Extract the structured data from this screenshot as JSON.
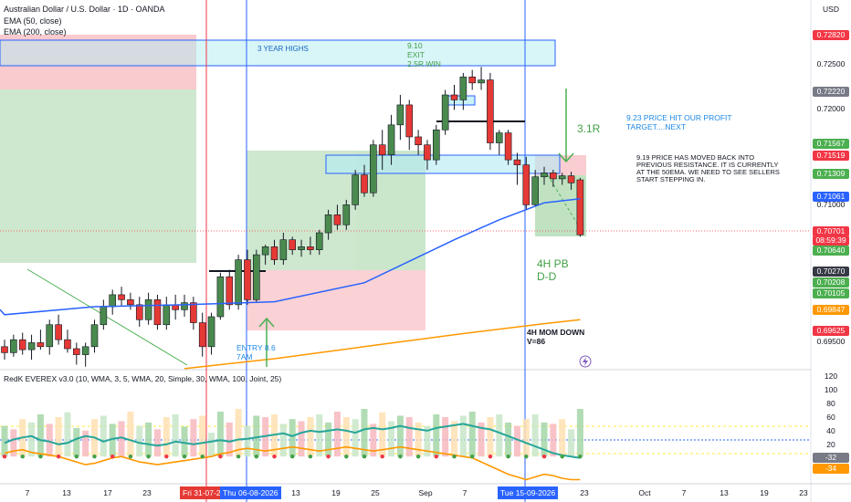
{
  "header": {
    "symbol_title": "Australian Dollar / U.S. Dollar · 1D · OANDA",
    "ema_50": "EMA (50, close)",
    "ema_200": "EMA (200, close)",
    "currency": "USD",
    "indicator": "RedK EVEREX v3.0 (10, WMA, 3, 5, WMA, 20, Simple, 30, WMA, 100, Joint, 25)"
  },
  "annotations": {
    "year_highs": "3 YEAR HIGHS",
    "exit_line1": "9.10",
    "exit_line2": "EXIT",
    "exit_line3": "2.5R WIN",
    "profit_line1": "9.23 PRICE HIT OUR PROFIT",
    "profit_line2": "TARGET....NEXT",
    "r31": "3.1R",
    "note_line1": "9.19 PRICE HAS MOVED BACK INTO",
    "note_line2": "PREVIOUS RESISTANCE. IT IS CURRENTLY",
    "note_line3": "AT THE 50EMA. WE NEED TO SEE SELLERS",
    "note_line4": "START STEPPING IN.",
    "pb_line1": "4H PB",
    "pb_line2": "D-D",
    "mom_line1": "4H MOM DOWN",
    "mom_line2": "V=86",
    "entry_line1": "ENTRY 8.6",
    "entry_line2": "7AM"
  },
  "price_axis": {
    "plain": [
      "0.72500",
      "0.72000",
      "0.71000",
      "0.69500"
    ],
    "tags": [
      {
        "label": "0.72820",
        "color": "#f23645"
      },
      {
        "label": "0.72220",
        "color": "#787b86"
      },
      {
        "label": "0.71567",
        "color": "#4caf50"
      },
      {
        "label": "0.71519",
        "color": "#f23645"
      },
      {
        "label": "0.71309",
        "color": "#4caf50"
      },
      {
        "label": "0.71061",
        "color": "#2962ff"
      },
      {
        "label": "0.70701",
        "color": "#f23645"
      },
      {
        "label": "08:59:39",
        "color": "#f23645"
      },
      {
        "label": "0.70640",
        "color": "#4caf50"
      },
      {
        "label": "0.70270",
        "color": "#363a45"
      },
      {
        "label": "0.70208",
        "color": "#4caf50"
      },
      {
        "label": "0.70105",
        "color": "#4caf50"
      },
      {
        "label": "0.69847",
        "color": "#ff9800"
      },
      {
        "label": "0.69625",
        "color": "#f23645"
      }
    ]
  },
  "osc_axis": {
    "plain": [
      "120",
      "100",
      "80",
      "60",
      "40",
      "20",
      "0"
    ],
    "tags": [
      {
        "label": "-32",
        "color": "#787b86"
      },
      {
        "label": "-34",
        "color": "#ff9800"
      }
    ]
  },
  "time_axis": {
    "ticks": [
      "7",
      "13",
      "17",
      "23",
      "13",
      "19",
      "25",
      "Sep",
      "7",
      "23",
      "Oct",
      "7",
      "13",
      "19",
      "23"
    ],
    "tag_fri": "Fri 31-07-2",
    "tag_thu": "Thu 06-08-2026",
    "tag_tue": "Tue 15-09-2026"
  },
  "chart_data": [
    {
      "type": "candlestick",
      "title": "Australian Dollar / U.S. Dollar · 1D · OANDA",
      "currency": "USD",
      "ylim": [
        0.6935,
        0.7305
      ],
      "candles": [
        {
          "o": 0.6958,
          "h": 0.6965,
          "l": 0.6945,
          "c": 0.6952
        },
        {
          "o": 0.6952,
          "h": 0.697,
          "l": 0.6948,
          "c": 0.6965
        },
        {
          "o": 0.6965,
          "h": 0.6972,
          "l": 0.695,
          "c": 0.6955
        },
        {
          "o": 0.6955,
          "h": 0.697,
          "l": 0.6945,
          "c": 0.6962
        },
        {
          "o": 0.6962,
          "h": 0.6975,
          "l": 0.6955,
          "c": 0.6958
        },
        {
          "o": 0.6958,
          "h": 0.6985,
          "l": 0.695,
          "c": 0.698
        },
        {
          "o": 0.698,
          "h": 0.699,
          "l": 0.696,
          "c": 0.6965
        },
        {
          "o": 0.6965,
          "h": 0.6975,
          "l": 0.6952,
          "c": 0.6956
        },
        {
          "o": 0.6956,
          "h": 0.6962,
          "l": 0.694,
          "c": 0.695
        },
        {
          "o": 0.695,
          "h": 0.6962,
          "l": 0.6938,
          "c": 0.6958
        },
        {
          "o": 0.6958,
          "h": 0.6985,
          "l": 0.6952,
          "c": 0.698
        },
        {
          "o": 0.698,
          "h": 0.7005,
          "l": 0.6975,
          "c": 0.6998
        },
        {
          "o": 0.6998,
          "h": 0.7015,
          "l": 0.699,
          "c": 0.701
        },
        {
          "o": 0.701,
          "h": 0.7018,
          "l": 0.6998,
          "c": 0.7005
        },
        {
          "o": 0.7005,
          "h": 0.7012,
          "l": 0.6995,
          "c": 0.7
        },
        {
          "o": 0.7,
          "h": 0.7008,
          "l": 0.6978,
          "c": 0.6985
        },
        {
          "o": 0.6985,
          "h": 0.7012,
          "l": 0.698,
          "c": 0.7005
        },
        {
          "o": 0.7005,
          "h": 0.701,
          "l": 0.6975,
          "c": 0.698
        },
        {
          "o": 0.698,
          "h": 0.7008,
          "l": 0.6975,
          "c": 0.7
        },
        {
          "o": 0.7,
          "h": 0.701,
          "l": 0.6985,
          "c": 0.6995
        },
        {
          "o": 0.6995,
          "h": 0.701,
          "l": 0.6988,
          "c": 0.7002
        },
        {
          "o": 0.7002,
          "h": 0.7008,
          "l": 0.6975,
          "c": 0.6982
        },
        {
          "o": 0.6982,
          "h": 0.6992,
          "l": 0.6948,
          "c": 0.6958
        },
        {
          "o": 0.6958,
          "h": 0.6992,
          "l": 0.695,
          "c": 0.6988
        },
        {
          "o": 0.6988,
          "h": 0.7032,
          "l": 0.6985,
          "c": 0.7028
        },
        {
          "o": 0.7028,
          "h": 0.7035,
          "l": 0.6995,
          "c": 0.7
        },
        {
          "o": 0.7,
          "h": 0.705,
          "l": 0.6995,
          "c": 0.7045
        },
        {
          "o": 0.7045,
          "h": 0.7055,
          "l": 0.7,
          "c": 0.7005
        },
        {
          "o": 0.7005,
          "h": 0.7055,
          "l": 0.7002,
          "c": 0.705
        },
        {
          "o": 0.705,
          "h": 0.706,
          "l": 0.704,
          "c": 0.7058
        },
        {
          "o": 0.7058,
          "h": 0.7065,
          "l": 0.704,
          "c": 0.7045
        },
        {
          "o": 0.7045,
          "h": 0.7072,
          "l": 0.704,
          "c": 0.7065
        },
        {
          "o": 0.7065,
          "h": 0.7068,
          "l": 0.705,
          "c": 0.7055
        },
        {
          "o": 0.7055,
          "h": 0.7065,
          "l": 0.7048,
          "c": 0.7058
        },
        {
          "o": 0.7058,
          "h": 0.7068,
          "l": 0.705,
          "c": 0.7055
        },
        {
          "o": 0.7055,
          "h": 0.7075,
          "l": 0.705,
          "c": 0.7072
        },
        {
          "o": 0.7072,
          "h": 0.7095,
          "l": 0.7065,
          "c": 0.709
        },
        {
          "o": 0.709,
          "h": 0.71,
          "l": 0.7075,
          "c": 0.708
        },
        {
          "o": 0.708,
          "h": 0.7105,
          "l": 0.7075,
          "c": 0.71
        },
        {
          "o": 0.71,
          "h": 0.7135,
          "l": 0.7095,
          "c": 0.713
        },
        {
          "o": 0.713,
          "h": 0.714,
          "l": 0.7108,
          "c": 0.7112
        },
        {
          "o": 0.7112,
          "h": 0.7165,
          "l": 0.7108,
          "c": 0.716
        },
        {
          "o": 0.716,
          "h": 0.7175,
          "l": 0.7135,
          "c": 0.715
        },
        {
          "o": 0.715,
          "h": 0.719,
          "l": 0.714,
          "c": 0.718
        },
        {
          "o": 0.718,
          "h": 0.721,
          "l": 0.7165,
          "c": 0.72
        },
        {
          "o": 0.72,
          "h": 0.7205,
          "l": 0.7155,
          "c": 0.7168
        },
        {
          "o": 0.7168,
          "h": 0.7175,
          "l": 0.715,
          "c": 0.716
        },
        {
          "o": 0.716,
          "h": 0.7165,
          "l": 0.7135,
          "c": 0.7145
        },
        {
          "o": 0.7145,
          "h": 0.718,
          "l": 0.714,
          "c": 0.7175
        },
        {
          "o": 0.7175,
          "h": 0.7215,
          "l": 0.717,
          "c": 0.721
        },
        {
          "o": 0.721,
          "h": 0.722,
          "l": 0.7195,
          "c": 0.7205
        },
        {
          "o": 0.7205,
          "h": 0.7232,
          "l": 0.7195,
          "c": 0.7228
        },
        {
          "o": 0.7228,
          "h": 0.7235,
          "l": 0.7215,
          "c": 0.7222
        },
        {
          "o": 0.7222,
          "h": 0.7238,
          "l": 0.7215,
          "c": 0.7225
        },
        {
          "o": 0.7225,
          "h": 0.7232,
          "l": 0.7155,
          "c": 0.7162
        },
        {
          "o": 0.7162,
          "h": 0.7175,
          "l": 0.715,
          "c": 0.7172
        },
        {
          "o": 0.7172,
          "h": 0.7175,
          "l": 0.714,
          "c": 0.7145
        },
        {
          "o": 0.7145,
          "h": 0.7152,
          "l": 0.712,
          "c": 0.714
        },
        {
          "o": 0.714,
          "h": 0.7148,
          "l": 0.7095,
          "c": 0.71
        },
        {
          "o": 0.71,
          "h": 0.7135,
          "l": 0.7098,
          "c": 0.7128
        },
        {
          "o": 0.7128,
          "h": 0.7138,
          "l": 0.712,
          "c": 0.7132
        },
        {
          "o": 0.7132,
          "h": 0.7135,
          "l": 0.7118,
          "c": 0.7126
        },
        {
          "o": 0.7126,
          "h": 0.7132,
          "l": 0.712,
          "c": 0.7129
        },
        {
          "o": 0.7129,
          "h": 0.7133,
          "l": 0.7115,
          "c": 0.7122
        },
        {
          "o": 0.7125,
          "h": 0.7127,
          "l": 0.7068,
          "c": 0.707
        }
      ],
      "ema50": {
        "x": [
          0,
          10,
          20,
          30,
          40,
          50,
          55,
          60,
          64
        ],
        "y": [
          0.699,
          0.6998,
          0.7,
          0.7003,
          0.7022,
          0.7065,
          0.7085,
          0.7102,
          0.7106
        ]
      },
      "ema200": {
        "x": [
          20,
          30,
          40,
          50,
          60,
          64
        ],
        "y": [
          0.6936,
          0.6946,
          0.6958,
          0.697,
          0.6981,
          0.6985
        ]
      },
      "levels": {
        "year_high_zone": [
          0.7262,
          0.729
        ],
        "target_zone": [
          0.7122,
          0.714
        ],
        "resistance_line": 0.7182,
        "entry": 0.7003,
        "profit_target": 0.7152,
        "stop_zone": [
          0.696,
          0.7001
        ]
      }
    },
    {
      "type": "bar",
      "title": "RedK EVEREX v3.0 (10, WMA, 3, 5, WMA, 20, Simple, 30, WMA, 100, Joint, 25)",
      "ylim": [
        -40,
        125
      ],
      "yticks": [
        120,
        100,
        80,
        60,
        40,
        20,
        0
      ],
      "bars": [
        45,
        40,
        55,
        50,
        62,
        48,
        58,
        65,
        42,
        38,
        55,
        60,
        48,
        52,
        66,
        45,
        50,
        40,
        58,
        62,
        44,
        55,
        60,
        35,
        66,
        50,
        70,
        45,
        60,
        58,
        62,
        48,
        55,
        52,
        58,
        62,
        50,
        66,
        58,
        55,
        70,
        48,
        65,
        52,
        60,
        58,
        50,
        45,
        62,
        58,
        52,
        60,
        66,
        50,
        58,
        62,
        50,
        45,
        55,
        62,
        50,
        48,
        55,
        40,
        70
      ],
      "signal": [
        20,
        25,
        28,
        30,
        24,
        22,
        18,
        20,
        26,
        30,
        28,
        22,
        26,
        28,
        24,
        20,
        18,
        16,
        18,
        22,
        20,
        18,
        20,
        22,
        24,
        22,
        25,
        26,
        28,
        30,
        32,
        34,
        30,
        35,
        38,
        36,
        38,
        40,
        38,
        35,
        40,
        42,
        40,
        42,
        45,
        42,
        40,
        38,
        42,
        44,
        46,
        48,
        45,
        42,
        40,
        35,
        30,
        25,
        20,
        15,
        10,
        5,
        2,
        0,
        -2
      ],
      "baseline": [
        5,
        8,
        10,
        6,
        4,
        2,
        0,
        -4,
        -8,
        -12,
        -10,
        -6,
        -2,
        0,
        -4,
        -8,
        -10,
        -12,
        -10,
        -8,
        -6,
        -4,
        -2,
        0,
        4,
        6,
        10,
        12,
        10,
        8,
        10,
        12,
        14,
        12,
        10,
        8,
        10,
        12,
        14,
        12,
        10,
        8,
        10,
        12,
        14,
        12,
        10,
        8,
        6,
        4,
        2,
        0,
        -2,
        -8,
        -14,
        -20,
        -26,
        -30,
        -34,
        -30,
        -26,
        -28,
        -32,
        -34,
        -34
      ],
      "last_values": [
        -32,
        -34
      ]
    }
  ]
}
